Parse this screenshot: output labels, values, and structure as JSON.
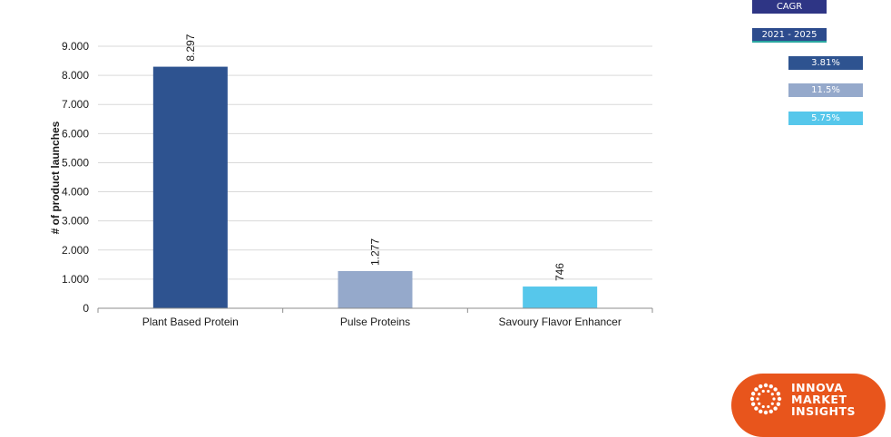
{
  "chart_data": {
    "type": "bar",
    "categories": [
      "Plant Based Protein",
      "Pulse Proteins",
      "Savoury Flavor Enhancer"
    ],
    "values": [
      8297,
      1277,
      746
    ],
    "data_labels": [
      "8.297",
      "1.277",
      "746"
    ],
    "colors": [
      "#2e5390",
      "#95a9cb",
      "#56c7eb"
    ],
    "ylabel": "# of product launches",
    "ylim": [
      0,
      9000
    ],
    "yticks": [
      0,
      1000,
      2000,
      3000,
      4000,
      5000,
      6000,
      7000,
      8000,
      9000
    ],
    "ytick_labels": [
      "0",
      "1.000",
      "2.000",
      "3.000",
      "4.000",
      "5.000",
      "6.000",
      "7.000",
      "8.000",
      "9.000"
    ],
    "grid": true,
    "gridline_color": "#d9d9d9"
  },
  "cagr_panel": {
    "header": "CAGR",
    "period": "2021 - 2025",
    "items": [
      {
        "value": "3.81%",
        "color": "#2e5390"
      },
      {
        "value": "11.5%",
        "color": "#95a9cb"
      },
      {
        "value": "5.75%",
        "color": "#56c7eb"
      }
    ]
  },
  "logo": {
    "line1": "INNOVA",
    "line2": "MARKET",
    "line3": "INSIGHTS"
  }
}
